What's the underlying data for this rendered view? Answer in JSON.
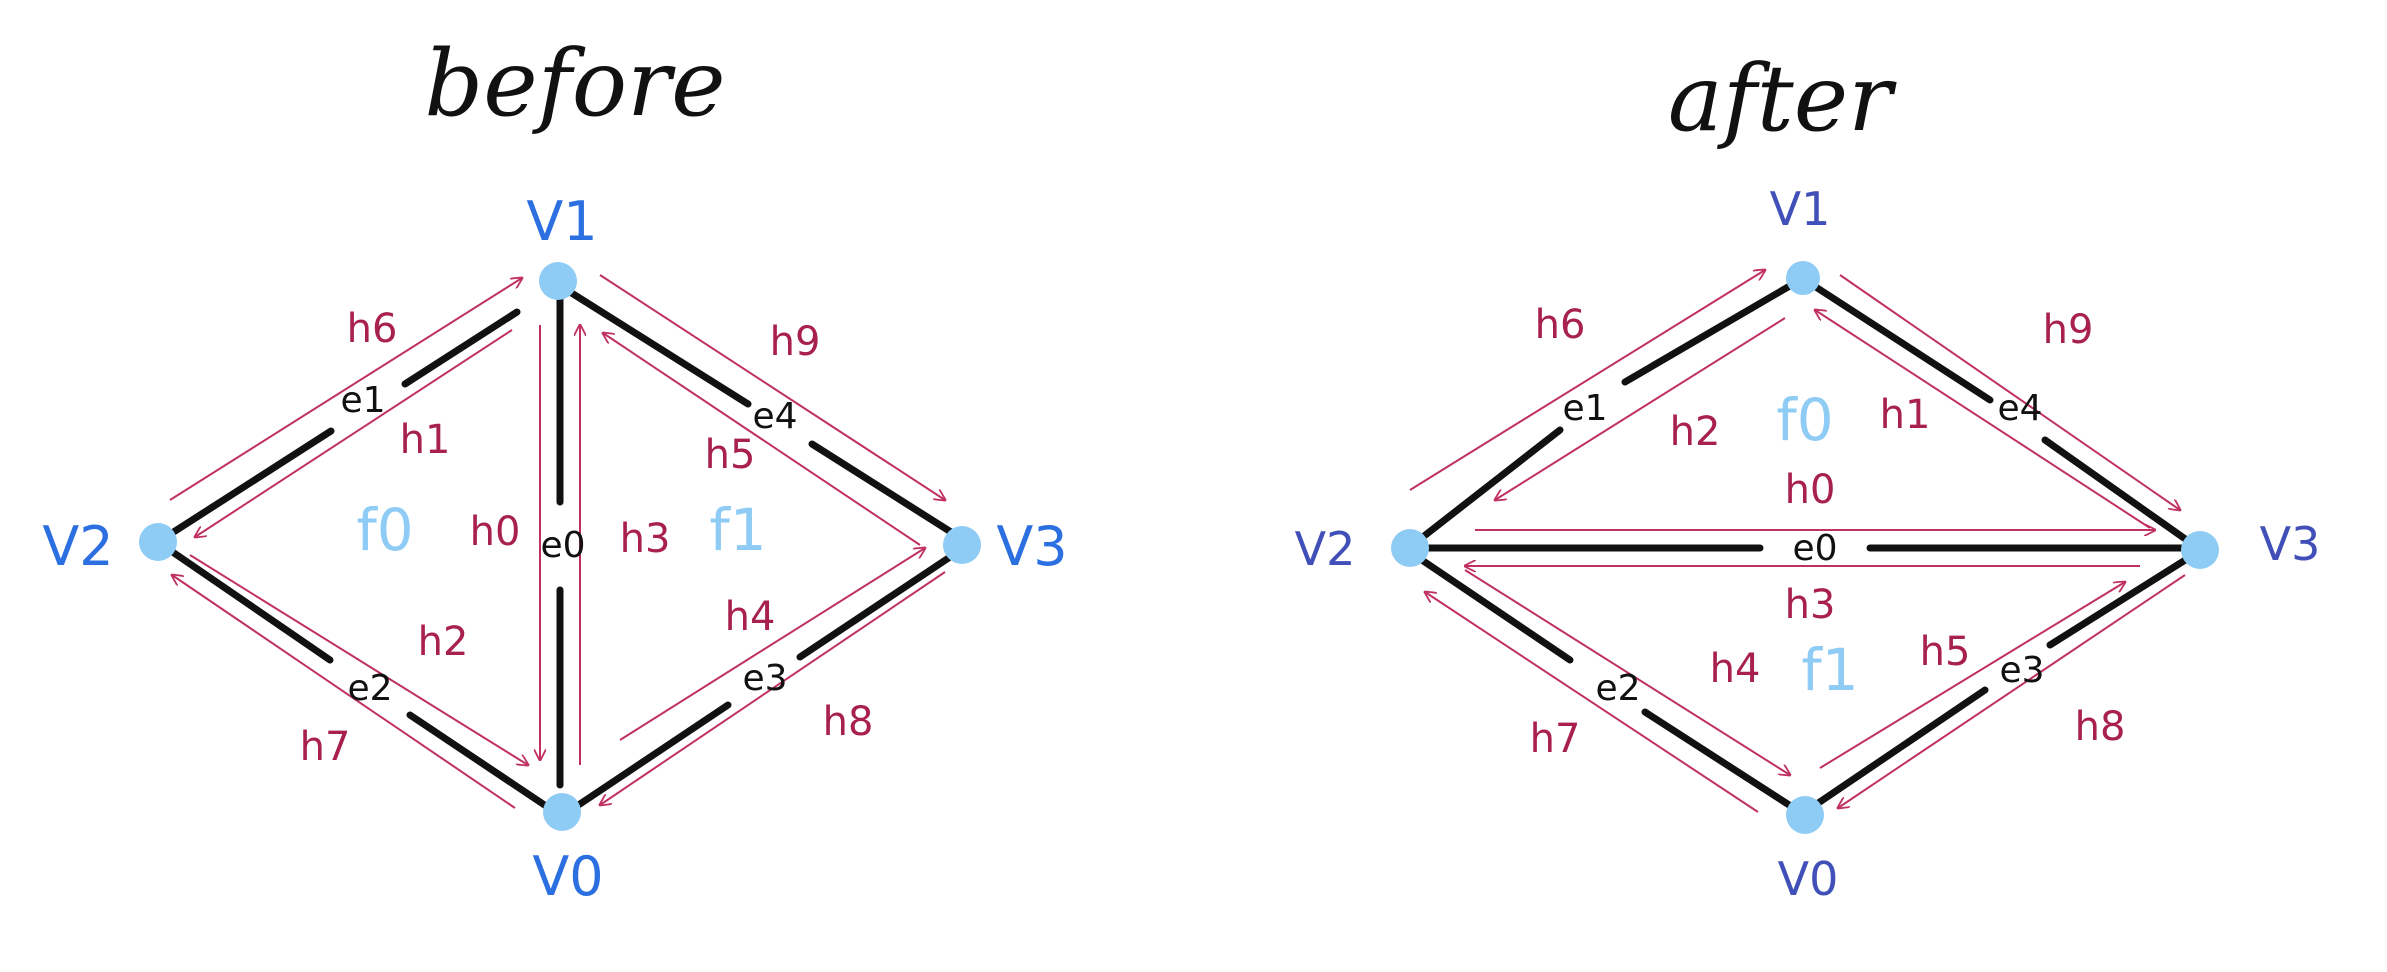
{
  "titles": {
    "before": "before",
    "after": "after"
  },
  "colors": {
    "vertex": "#8ecbf5",
    "vertex_label_before": "#2b6fe0",
    "vertex_label_after": "#4050b8",
    "halfedge": "#c03060",
    "halfedge_label": "#a8204e",
    "edge": "#111111",
    "face_label": "#8ecbf5"
  },
  "before": {
    "vertices": {
      "v0": "V0",
      "v1": "V1",
      "v2": "V2",
      "v3": "V3"
    },
    "edges": {
      "e0": "e0",
      "e1": "e1",
      "e2": "e2",
      "e3": "e3",
      "e4": "e4"
    },
    "faces": {
      "f0": "f0",
      "f1": "f1"
    },
    "halfedges": {
      "h0": "h0",
      "h1": "h1",
      "h2": "h2",
      "h3": "h3",
      "h4": "h4",
      "h5": "h5",
      "h6": "h6",
      "h7": "h7",
      "h8": "h8",
      "h9": "h9"
    }
  },
  "after": {
    "vertices": {
      "v0": "V0",
      "v1": "V1",
      "v2": "V2",
      "v3": "V3"
    },
    "edges": {
      "e0": "e0",
      "e1": "e1",
      "e2": "e2",
      "e3": "e3",
      "e4": "e4"
    },
    "faces": {
      "f0": "f0",
      "f1": "f1"
    },
    "halfedges": {
      "h0": "h0",
      "h1": "h1",
      "h2": "h2",
      "h3": "h3",
      "h4": "h4",
      "h5": "h5",
      "h6": "h6",
      "h7": "h7",
      "h8": "h8",
      "h9": "h9"
    }
  }
}
